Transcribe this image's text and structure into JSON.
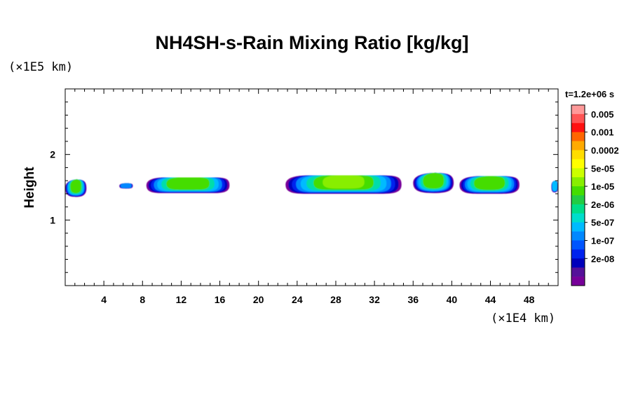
{
  "chart_data": {
    "type": "heatmap",
    "title": "NH4SH-s-Rain Mixing Ratio [kg/kg]",
    "xlabel": "",
    "ylabel": "Height",
    "x_unit": "(×1E4 km)",
    "y_unit": "(×1E5 km)",
    "x_ticks": [
      4,
      8,
      12,
      16,
      20,
      24,
      28,
      32,
      36,
      40,
      44,
      48
    ],
    "y_ticks": [
      1,
      2
    ],
    "xlim": [
      0,
      51
    ],
    "ylim": [
      0,
      3
    ],
    "time_label": "t=1.2e+06 s",
    "colorbar": {
      "labels": [
        "0.005",
        "0.001",
        "0.0002",
        "5e-05",
        "1e-05",
        "2e-06",
        "5e-07",
        "1e-07",
        "2e-08"
      ],
      "colors": [
        "#ff9999",
        "#ff5555",
        "#ff1111",
        "#ff6600",
        "#ffaa00",
        "#ffdd00",
        "#ffff00",
        "#ccff00",
        "#88ee00",
        "#44dd00",
        "#22cc44",
        "#00dd88",
        "#00ddcc",
        "#00bbff",
        "#0088ff",
        "#0055ff",
        "#0022ee",
        "#0000bb",
        "#551199",
        "#770099"
      ]
    },
    "cells": [
      {
        "x_range": [
          0,
          2.2
        ],
        "y_range": [
          1.35,
          1.62
        ],
        "peak": "1e-05"
      },
      {
        "x_range": [
          5.6,
          7.0
        ],
        "y_range": [
          1.48,
          1.56
        ],
        "peak": "1e-07"
      },
      {
        "x_range": [
          8.4,
          17.0
        ],
        "y_range": [
          1.41,
          1.65
        ],
        "peak": "1e-05"
      },
      {
        "x_range": [
          22.8,
          34.8
        ],
        "y_range": [
          1.4,
          1.68
        ],
        "peak": "5e-05"
      },
      {
        "x_range": [
          36.0,
          40.2
        ],
        "y_range": [
          1.41,
          1.72
        ],
        "peak": "1e-05"
      },
      {
        "x_range": [
          40.8,
          47.0
        ],
        "y_range": [
          1.4,
          1.67
        ],
        "peak": "1e-05"
      },
      {
        "x_range": [
          50.3,
          51.0
        ],
        "y_range": [
          1.42,
          1.6
        ],
        "peak": "1e-06"
      }
    ]
  }
}
